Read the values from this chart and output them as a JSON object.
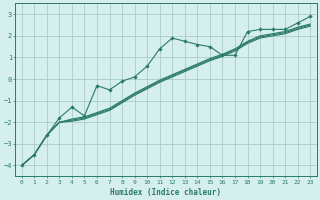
{
  "xlabel": "Humidex (Indice chaleur)",
  "xlim": [
    -0.5,
    23.5
  ],
  "ylim": [
    -4.5,
    3.5
  ],
  "yticks": [
    -4,
    -3,
    -2,
    -1,
    0,
    1,
    2,
    3
  ],
  "xticks": [
    0,
    1,
    2,
    3,
    4,
    5,
    6,
    7,
    8,
    9,
    10,
    11,
    12,
    13,
    14,
    15,
    16,
    17,
    18,
    19,
    20,
    21,
    22,
    23
  ],
  "background_color": "#d5eeee",
  "grid_color": "#aacccc",
  "line_color": "#2a7a6a",
  "line1_x": [
    0,
    1,
    2,
    3,
    4,
    5,
    6,
    7,
    8,
    9,
    10,
    11,
    12,
    13,
    14,
    15,
    16,
    17,
    18,
    19,
    20,
    21,
    22,
    23
  ],
  "line1_y": [
    -4.0,
    -3.5,
    -2.6,
    -1.8,
    -1.3,
    -1.7,
    -0.3,
    -0.5,
    -0.1,
    0.1,
    0.6,
    1.4,
    1.9,
    1.75,
    1.6,
    1.5,
    1.1,
    1.1,
    2.2,
    2.3,
    2.3,
    2.3,
    2.6,
    2.9
  ],
  "line2_x": [
    0,
    1,
    2,
    3,
    4,
    5,
    6,
    7,
    8,
    9,
    10,
    11,
    12,
    13,
    14,
    15,
    16,
    17,
    18,
    19,
    20,
    21,
    22,
    23
  ],
  "line2_y": [
    -4.0,
    -3.5,
    -2.6,
    -2.0,
    -1.85,
    -1.75,
    -1.55,
    -1.35,
    -1.0,
    -0.65,
    -0.35,
    -0.05,
    0.2,
    0.45,
    0.7,
    0.95,
    1.15,
    1.4,
    1.75,
    2.0,
    2.1,
    2.2,
    2.4,
    2.55
  ],
  "line3_x": [
    0,
    1,
    2,
    3,
    4,
    5,
    6,
    7,
    8,
    9,
    10,
    11,
    12,
    13,
    14,
    15,
    16,
    17,
    18,
    19,
    20,
    21,
    22,
    23
  ],
  "line3_y": [
    -4.0,
    -3.5,
    -2.6,
    -2.0,
    -1.9,
    -1.8,
    -1.6,
    -1.4,
    -1.05,
    -0.7,
    -0.4,
    -0.1,
    0.15,
    0.4,
    0.65,
    0.9,
    1.1,
    1.35,
    1.7,
    1.95,
    2.05,
    2.15,
    2.35,
    2.5
  ],
  "line4_x": [
    0,
    1,
    2,
    3,
    4,
    5,
    6,
    7,
    8,
    9,
    10,
    11,
    12,
    13,
    14,
    15,
    16,
    17,
    18,
    19,
    20,
    21,
    22,
    23
  ],
  "line4_y": [
    -4.0,
    -3.5,
    -2.6,
    -2.0,
    -1.95,
    -1.85,
    -1.65,
    -1.45,
    -1.1,
    -0.75,
    -0.45,
    -0.15,
    0.1,
    0.35,
    0.6,
    0.85,
    1.05,
    1.3,
    1.65,
    1.9,
    2.0,
    2.1,
    2.3,
    2.45
  ]
}
